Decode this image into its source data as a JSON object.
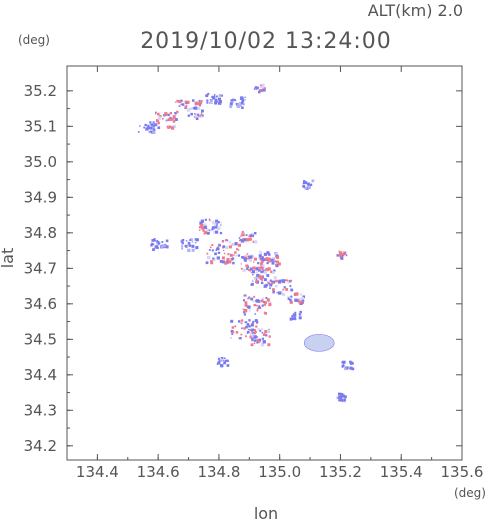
{
  "chart_data": {
    "type": "scatter",
    "title": "2019/10/02 13:24:00",
    "subtitle": "ALT(km) 2.0",
    "xlabel": "lon",
    "ylabel": "lat",
    "x_unit": "(deg)",
    "y_unit": "(deg)",
    "xlim": [
      134.3,
      135.6
    ],
    "ylim": [
      34.16,
      35.27
    ],
    "x_ticks": [
      "134.4",
      "134.6",
      "134.8",
      "135.0",
      "135.2",
      "135.4",
      "135.6"
    ],
    "y_ticks": [
      "34.2",
      "34.3",
      "34.4",
      "34.5",
      "34.6",
      "34.7",
      "34.8",
      "34.9",
      "35.0",
      "35.1",
      "35.2"
    ],
    "grid": false,
    "colors": {
      "positive": "#f07a8a",
      "negative": "#7a7af0",
      "weak": "#c8d2f0",
      "axis": "#555555"
    },
    "clusters": [
      {
        "lon": 134.56,
        "lat": 35.1,
        "polarity": "negative",
        "size": 2
      },
      {
        "lon": 134.62,
        "lat": 35.12,
        "polarity": "mixed",
        "size": 3
      },
      {
        "lon": 134.7,
        "lat": 35.15,
        "polarity": "mixed",
        "size": 4
      },
      {
        "lon": 134.78,
        "lat": 35.18,
        "polarity": "negative",
        "size": 2
      },
      {
        "lon": 134.86,
        "lat": 35.17,
        "polarity": "negative",
        "size": 2
      },
      {
        "lon": 134.93,
        "lat": 35.21,
        "polarity": "mixed",
        "size": 1
      },
      {
        "lon": 135.09,
        "lat": 34.94,
        "polarity": "negative",
        "size": 1
      },
      {
        "lon": 134.6,
        "lat": 34.77,
        "polarity": "negative",
        "size": 2
      },
      {
        "lon": 134.7,
        "lat": 34.77,
        "polarity": "negative",
        "size": 2
      },
      {
        "lon": 134.77,
        "lat": 34.82,
        "polarity": "mixed",
        "size": 3
      },
      {
        "lon": 134.81,
        "lat": 34.75,
        "polarity": "mixed",
        "size": 5
      },
      {
        "lon": 134.89,
        "lat": 34.79,
        "polarity": "mixed",
        "size": 2
      },
      {
        "lon": 134.91,
        "lat": 34.72,
        "polarity": "mixed",
        "size": 4
      },
      {
        "lon": 134.96,
        "lat": 34.73,
        "polarity": "mixed",
        "size": 3
      },
      {
        "lon": 134.94,
        "lat": 34.68,
        "polarity": "mixed",
        "size": 4
      },
      {
        "lon": 135.0,
        "lat": 34.65,
        "polarity": "mixed",
        "size": 3
      },
      {
        "lon": 134.92,
        "lat": 34.6,
        "polarity": "mixed",
        "size": 4
      },
      {
        "lon": 135.05,
        "lat": 34.62,
        "polarity": "mixed",
        "size": 2
      },
      {
        "lon": 135.05,
        "lat": 34.57,
        "polarity": "negative",
        "size": 1
      },
      {
        "lon": 135.2,
        "lat": 34.74,
        "polarity": "mixed",
        "size": 1
      },
      {
        "lon": 134.88,
        "lat": 34.53,
        "polarity": "mixed",
        "size": 4
      },
      {
        "lon": 134.93,
        "lat": 34.51,
        "polarity": "mixed",
        "size": 3
      },
      {
        "lon": 135.13,
        "lat": 34.49,
        "polarity": "weak",
        "size": 5
      },
      {
        "lon": 135.22,
        "lat": 34.43,
        "polarity": "negative",
        "size": 1
      },
      {
        "lon": 134.81,
        "lat": 34.44,
        "polarity": "negative",
        "size": 1
      },
      {
        "lon": 135.2,
        "lat": 34.34,
        "polarity": "negative",
        "size": 1
      }
    ]
  }
}
